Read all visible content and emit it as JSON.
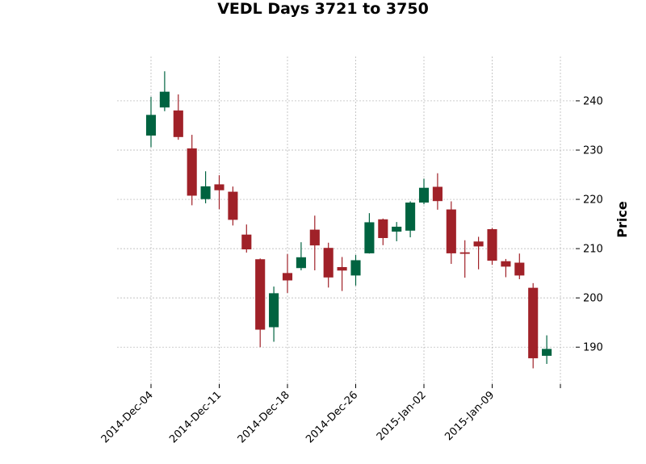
{
  "chart_data": {
    "type": "candlestick",
    "title": "VEDL Days 3721 to 3750",
    "xlabel": "",
    "ylabel": "Price",
    "ylim": [
      182.5,
      249
    ],
    "y_ticks": [
      190,
      200,
      210,
      220,
      230,
      240
    ],
    "y_axis_side": "right",
    "grid": true,
    "x_tick_indices": [
      0,
      5,
      10,
      15,
      20,
      25,
      30
    ],
    "x_tick_labels": [
      "2014-Dec-04",
      "2014-Dec-11",
      "2014-Dec-18",
      "2014-Dec-26",
      "2015-Jan-02",
      "2015-Jan-09",
      ""
    ],
    "colors": {
      "up": "#006340",
      "down": "#a02128",
      "grid": "#b0b0b0"
    },
    "candles": [
      {
        "open": 233.0,
        "high": 240.8,
        "low": 230.6,
        "close": 237.1
      },
      {
        "open": 238.7,
        "high": 246.0,
        "low": 237.9,
        "close": 241.8
      },
      {
        "open": 238.0,
        "high": 241.3,
        "low": 232.1,
        "close": 232.7
      },
      {
        "open": 230.3,
        "high": 233.1,
        "low": 218.8,
        "close": 220.8
      },
      {
        "open": 220.1,
        "high": 225.7,
        "low": 219.2,
        "close": 222.6
      },
      {
        "open": 223.0,
        "high": 224.9,
        "low": 218.0,
        "close": 221.9
      },
      {
        "open": 221.5,
        "high": 222.6,
        "low": 214.7,
        "close": 215.9
      },
      {
        "open": 212.8,
        "high": 214.9,
        "low": 209.2,
        "close": 209.9
      },
      {
        "open": 207.8,
        "high": 208.0,
        "low": 190.0,
        "close": 193.6
      },
      {
        "open": 194.1,
        "high": 202.3,
        "low": 191.1,
        "close": 200.9
      },
      {
        "open": 205.0,
        "high": 208.9,
        "low": 201.0,
        "close": 203.6
      },
      {
        "open": 206.1,
        "high": 211.3,
        "low": 205.6,
        "close": 208.2
      },
      {
        "open": 213.8,
        "high": 216.7,
        "low": 205.6,
        "close": 210.7
      },
      {
        "open": 210.1,
        "high": 211.2,
        "low": 202.1,
        "close": 204.2
      },
      {
        "open": 206.2,
        "high": 208.3,
        "low": 201.4,
        "close": 205.6
      },
      {
        "open": 204.6,
        "high": 208.7,
        "low": 202.5,
        "close": 207.6
      },
      {
        "open": 209.1,
        "high": 217.2,
        "low": 209.0,
        "close": 215.3
      },
      {
        "open": 215.9,
        "high": 216.1,
        "low": 210.7,
        "close": 212.2
      },
      {
        "open": 213.5,
        "high": 215.4,
        "low": 211.5,
        "close": 214.4
      },
      {
        "open": 213.7,
        "high": 219.6,
        "low": 212.3,
        "close": 219.3
      },
      {
        "open": 219.4,
        "high": 224.2,
        "low": 219.0,
        "close": 222.3
      },
      {
        "open": 222.5,
        "high": 225.3,
        "low": 217.9,
        "close": 219.7
      },
      {
        "open": 217.9,
        "high": 219.6,
        "low": 206.9,
        "close": 209.1
      },
      {
        "open": 209.2,
        "high": 211.7,
        "low": 204.1,
        "close": 209.0
      },
      {
        "open": 211.4,
        "high": 212.4,
        "low": 205.8,
        "close": 210.5
      },
      {
        "open": 213.9,
        "high": 214.2,
        "low": 206.7,
        "close": 207.6
      },
      {
        "open": 207.4,
        "high": 207.9,
        "low": 204.2,
        "close": 206.4
      },
      {
        "open": 207.1,
        "high": 209.0,
        "low": 203.8,
        "close": 204.6
      },
      {
        "open": 202.0,
        "high": 203.0,
        "low": 185.7,
        "close": 187.8
      },
      {
        "open": 188.3,
        "high": 192.4,
        "low": 186.6,
        "close": 189.6
      }
    ]
  }
}
